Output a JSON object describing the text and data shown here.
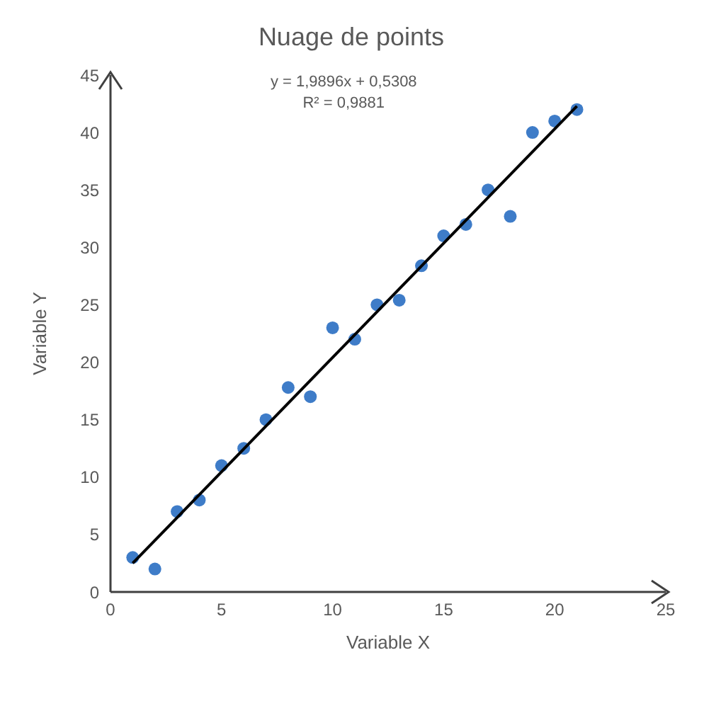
{
  "chart_data": {
    "type": "scatter",
    "title": "Nuage de points",
    "xlabel": "Variable X",
    "ylabel": "Variable Y",
    "annotations": [
      "y = 1,9896x + 0,5308",
      "R² = 0,9881"
    ],
    "xlim": [
      0,
      25
    ],
    "xticks": [
      0,
      5,
      10,
      15,
      20,
      25
    ],
    "ylim": [
      0,
      45
    ],
    "yticks": [
      0,
      5,
      10,
      15,
      20,
      25,
      30,
      35,
      40,
      45
    ],
    "series": [
      {
        "color": "#3e7cc8",
        "marker": "circle",
        "x": [
          1,
          2,
          3,
          4,
          5,
          6,
          7,
          8,
          9,
          10,
          11,
          12,
          13,
          14,
          15,
          16,
          17,
          18,
          19,
          20,
          21
        ],
        "values": [
          3,
          2,
          7,
          8,
          11,
          12.5,
          15,
          17.8,
          17,
          23,
          22,
          25,
          25.4,
          28.4,
          31,
          32,
          35,
          32.7,
          40,
          41,
          42
        ]
      },
      {
        "type": "line",
        "color": "#000000",
        "line_style": "solid",
        "marker": "none",
        "x": [
          1,
          21
        ],
        "values": [
          2.5,
          42.3
        ]
      }
    ]
  }
}
